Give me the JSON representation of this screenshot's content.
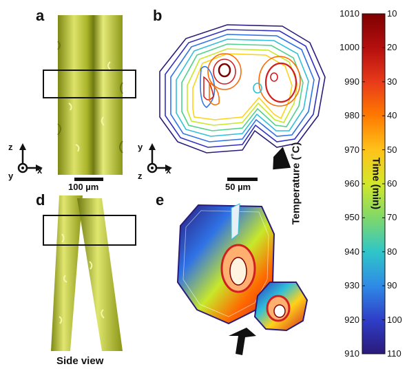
{
  "panels": {
    "a": "a",
    "b": "b",
    "d": "d",
    "e": "e"
  },
  "scale_bars": {
    "left": "100 µm",
    "middle": "50 µm"
  },
  "captions": {
    "side_view": "Side view"
  },
  "axes_glyphs": {
    "left": {
      "up": "z",
      "right": "x",
      "out": "y"
    },
    "middle": {
      "up": "y",
      "right": "x",
      "out": "z"
    }
  },
  "colorbar": {
    "left_title": "Temperature (˚C)",
    "right_title": "Time (min)",
    "temperature_ticks": [
      "1010",
      "1000",
      "990",
      "980",
      "970",
      "960",
      "950",
      "940",
      "930",
      "920",
      "910"
    ],
    "time_ticks": [
      "10",
      "20",
      "30",
      "40",
      "50",
      "60",
      "70",
      "80",
      "90",
      "100",
      "110"
    ],
    "colors": [
      "#7f0000",
      "#d11f1f",
      "#ff6a00",
      "#ffd21a",
      "#c8e82a",
      "#4fd18a",
      "#2fbfd8",
      "#2f72e6",
      "#2f2fbf",
      "#2a1a7a"
    ]
  },
  "colors": {
    "fiber": "#c9d24a",
    "fiber_dark": "#8e9a18",
    "fiber_light": "#eef38a"
  }
}
